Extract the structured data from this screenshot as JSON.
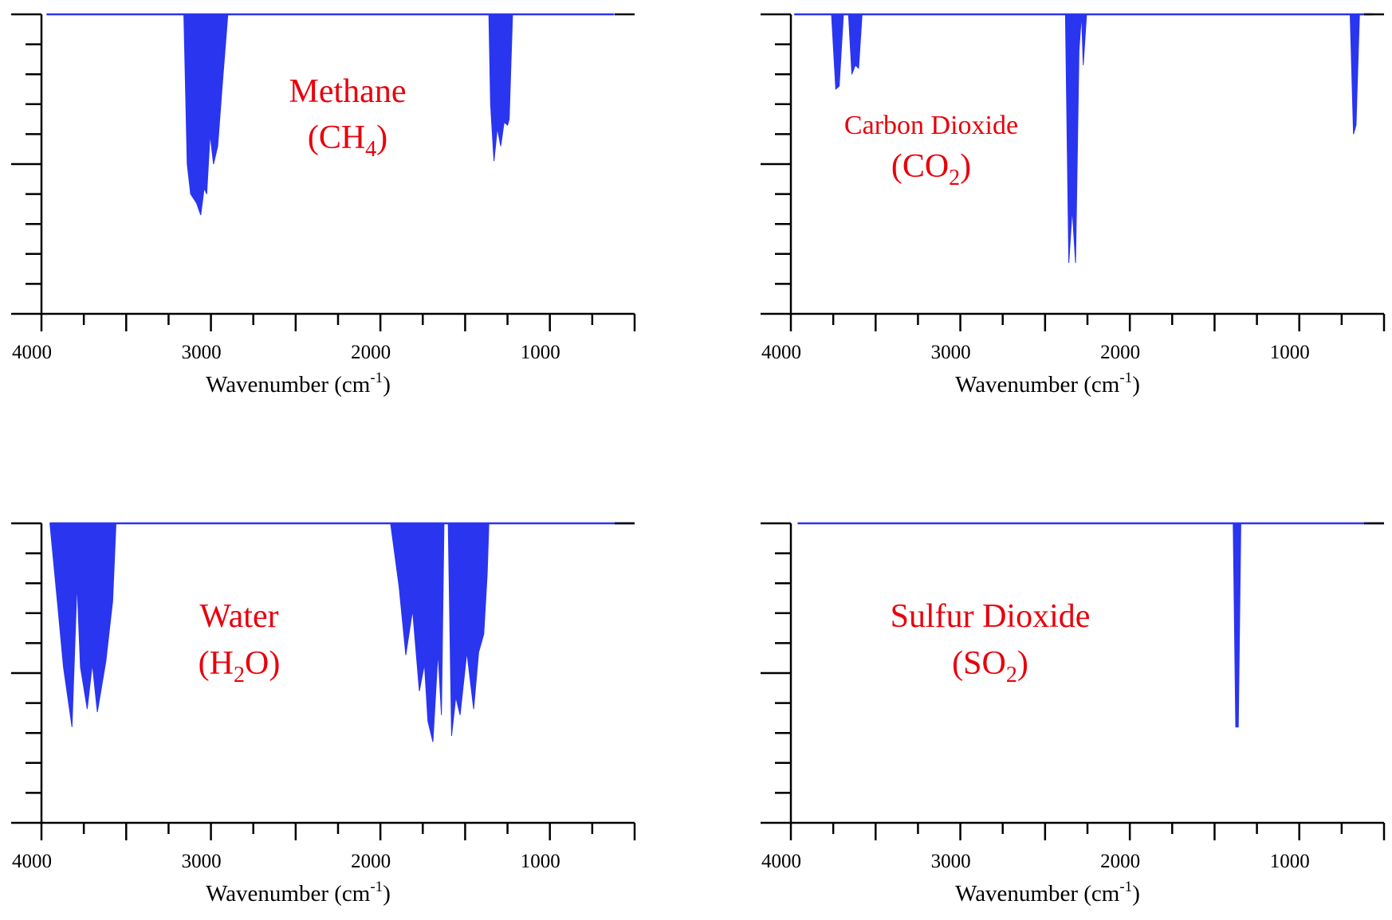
{
  "colors": {
    "spectrum": "#2a35f0",
    "axis": "#000000",
    "molecule_label": "#e8000b"
  },
  "chart_data": [
    {
      "type": "area",
      "molecule": {
        "name": "Methane",
        "formula_prefix": "(CH",
        "formula_subscript": "4",
        "formula_suffix": ")"
      },
      "xlabel": "Wavenumber (cm",
      "xlabel_sup": "-1",
      "xlabel_close": ")",
      "xlim": [
        4000,
        500
      ],
      "x_reversed": true,
      "xticks": [
        "4000",
        "3000",
        "2000",
        "1000"
      ],
      "ylim": [
        0,
        1
      ],
      "y_ticks_labeled": false,
      "baseline": 1.0,
      "points": [
        [
          3970,
          1.0
        ],
        [
          3160,
          1.0
        ],
        [
          3140,
          0.5
        ],
        [
          3120,
          0.4
        ],
        [
          3085,
          0.37
        ],
        [
          3060,
          0.33
        ],
        [
          3040,
          0.42
        ],
        [
          3025,
          0.4
        ],
        [
          3005,
          0.6
        ],
        [
          2985,
          0.5
        ],
        [
          2960,
          0.56
        ],
        [
          2935,
          0.75
        ],
        [
          2900,
          1.0
        ],
        [
          1360,
          1.0
        ],
        [
          1350,
          0.7
        ],
        [
          1330,
          0.51
        ],
        [
          1310,
          0.62
        ],
        [
          1290,
          0.56
        ],
        [
          1270,
          0.64
        ],
        [
          1250,
          0.63
        ],
        [
          1240,
          0.65
        ],
        [
          1220,
          1.0
        ],
        [
          620,
          1.0
        ]
      ]
    },
    {
      "type": "area",
      "molecule": {
        "name": "Carbon Dioxide",
        "formula_prefix": "(CO",
        "formula_subscript": "2",
        "formula_suffix": ")"
      },
      "xlabel": "Wavenumber (cm",
      "xlabel_sup": "-1",
      "xlabel_close": ")",
      "xlim": [
        4000,
        500
      ],
      "x_reversed": true,
      "xticks": [
        "4000",
        "3000",
        "2000",
        "1000"
      ],
      "ylim": [
        0,
        1
      ],
      "y_ticks_labeled": false,
      "baseline": 1.0,
      "points": [
        [
          3980,
          1.0
        ],
        [
          3760,
          1.0
        ],
        [
          3735,
          0.75
        ],
        [
          3715,
          0.76
        ],
        [
          3690,
          1.0
        ],
        [
          3660,
          1.0
        ],
        [
          3640,
          0.8
        ],
        [
          3620,
          0.83
        ],
        [
          3600,
          0.82
        ],
        [
          3580,
          1.0
        ],
        [
          2380,
          1.0
        ],
        [
          2360,
          0.17
        ],
        [
          2340,
          0.35
        ],
        [
          2320,
          0.17
        ],
        [
          2300,
          0.88
        ],
        [
          2285,
          1.0
        ],
        [
          2275,
          0.83
        ],
        [
          2255,
          1.0
        ],
        [
          700,
          1.0
        ],
        [
          680,
          0.6
        ],
        [
          665,
          0.63
        ],
        [
          645,
          1.0
        ],
        [
          560,
          1.0
        ]
      ]
    },
    {
      "type": "area",
      "molecule": {
        "name": "Water",
        "formula_prefix": "(H",
        "formula_subscript": "2",
        "formula_suffix": "O)"
      },
      "xlabel": "Wavenumber (cm",
      "xlabel_sup": "-1",
      "xlabel_close": ")",
      "xlim": [
        4000,
        500
      ],
      "x_reversed": true,
      "xticks": [
        "4000",
        "3000",
        "2000",
        "1000"
      ],
      "ylim": [
        0,
        1
      ],
      "y_ticks_labeled": false,
      "baseline": 1.0,
      "points": [
        [
          3950,
          1.0
        ],
        [
          3900,
          0.7
        ],
        [
          3870,
          0.52
        ],
        [
          3820,
          0.32
        ],
        [
          3790,
          0.8
        ],
        [
          3770,
          0.52
        ],
        [
          3730,
          0.38
        ],
        [
          3700,
          0.53
        ],
        [
          3670,
          0.37
        ],
        [
          3620,
          0.54
        ],
        [
          3580,
          0.74
        ],
        [
          3560,
          1.0
        ],
        [
          1940,
          1.0
        ],
        [
          1890,
          0.79
        ],
        [
          1850,
          0.56
        ],
        [
          1810,
          0.71
        ],
        [
          1770,
          0.44
        ],
        [
          1740,
          0.53
        ],
        [
          1720,
          0.34
        ],
        [
          1690,
          0.27
        ],
        [
          1660,
          0.57
        ],
        [
          1640,
          0.36
        ],
        [
          1625,
          1.0
        ],
        [
          1600,
          1.0
        ],
        [
          1580,
          0.29
        ],
        [
          1555,
          0.42
        ],
        [
          1530,
          0.36
        ],
        [
          1490,
          0.57
        ],
        [
          1450,
          0.38
        ],
        [
          1420,
          0.57
        ],
        [
          1390,
          0.63
        ],
        [
          1370,
          0.83
        ],
        [
          1360,
          1.0
        ],
        [
          500,
          1.0
        ]
      ]
    },
    {
      "type": "area",
      "molecule": {
        "name": "Sulfur Dioxide",
        "formula_prefix": "(SO",
        "formula_subscript": "2",
        "formula_suffix": ")"
      },
      "xlabel": "Wavenumber (cm",
      "xlabel_sup": "-1",
      "xlabel_close": ")",
      "xlim": [
        4000,
        500
      ],
      "x_reversed": true,
      "xticks": [
        "4000",
        "3000",
        "2000",
        "1000"
      ],
      "ylim": [
        0,
        1
      ],
      "y_ticks_labeled": false,
      "baseline": 1.0,
      "points": [
        [
          3960,
          1.0
        ],
        [
          1390,
          1.0
        ],
        [
          1375,
          0.32
        ],
        [
          1360,
          0.32
        ],
        [
          1345,
          1.0
        ],
        [
          500,
          1.0
        ]
      ]
    }
  ]
}
